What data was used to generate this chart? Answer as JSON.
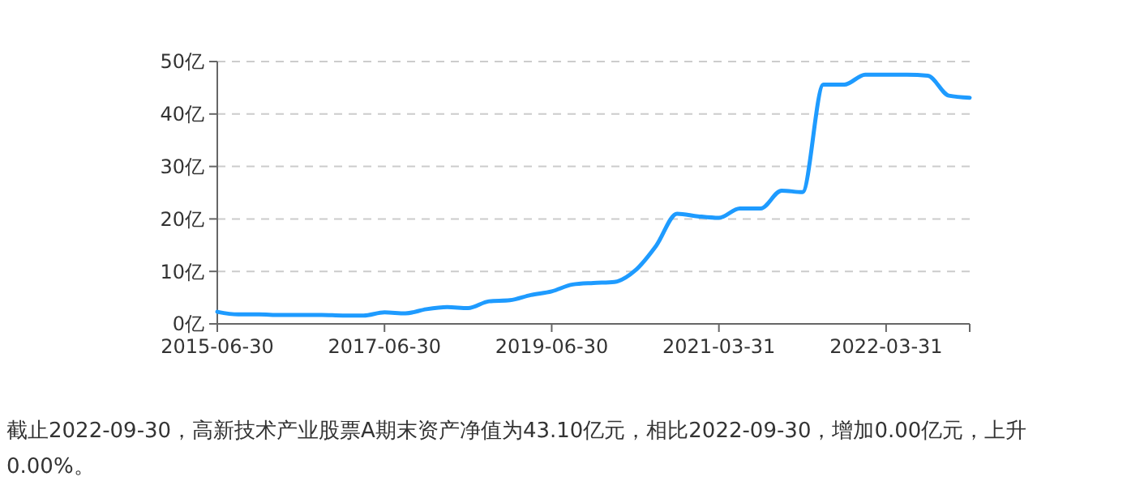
{
  "chart_data": {
    "type": "line",
    "categories": [
      "2015-06-30",
      null,
      null,
      null,
      null,
      null,
      null,
      null,
      "2017-06-30",
      null,
      null,
      null,
      null,
      null,
      null,
      null,
      "2019-06-30",
      null,
      null,
      null,
      null,
      null,
      null,
      null,
      "2021-03-31",
      null,
      null,
      null,
      null,
      null,
      null,
      null,
      "2022-03-31",
      null,
      null,
      null,
      null
    ],
    "series": [
      {
        "color": "#1e9bff",
        "values": [
          2.3,
          1.8,
          1.8,
          1.7,
          1.7,
          1.7,
          1.6,
          1.6,
          2.2,
          2.0,
          2.8,
          3.2,
          3.0,
          4.3,
          4.5,
          5.5,
          6.2,
          7.5,
          7.8,
          8.0,
          10.2,
          14.9,
          21,
          20.5,
          20.2,
          22,
          22,
          25.4,
          25.1,
          45.6,
          45.6,
          47.5,
          47.5,
          47.5,
          47.3,
          43.5,
          43.1
        ]
      }
    ],
    "ylim": [
      0,
      50
    ],
    "yticks": [
      {
        "value": 0,
        "label": "0亿"
      },
      {
        "value": 10,
        "label": "10亿"
      },
      {
        "value": 20,
        "label": "20亿"
      },
      {
        "value": 30,
        "label": "30亿"
      },
      {
        "value": 40,
        "label": "40亿"
      },
      {
        "value": 50,
        "label": "50亿"
      }
    ],
    "grid": "y",
    "line_style": "solid",
    "marker": "none",
    "annotations": [
      "截止2022-09-30，高新技术产业股票A期末资产净值为43.10亿元，相比2022-09-30，增加0.00亿元，上升0.00%。"
    ]
  }
}
